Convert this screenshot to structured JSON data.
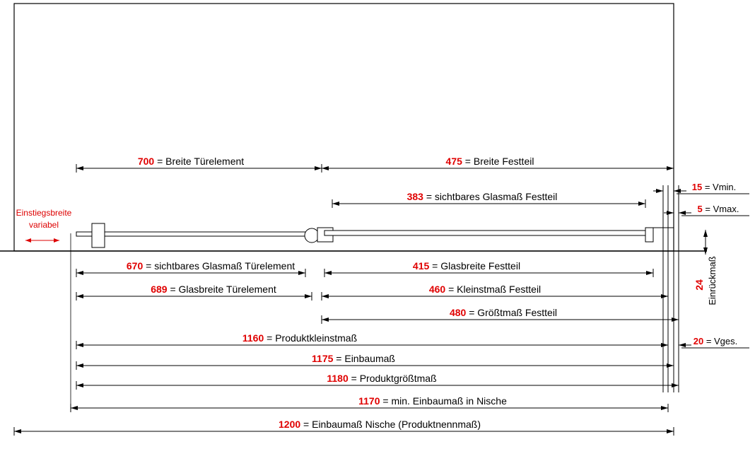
{
  "dimensions": [
    {
      "value": 700,
      "label": "= Breite Türelement"
    },
    {
      "value": 475,
      "label": "= Breite Festteil"
    },
    {
      "value": 383,
      "label": "= sichtbares Glasmaß Festteil"
    },
    {
      "value": 670,
      "label": "= sichtbares Glasmaß Türelement"
    },
    {
      "value": 415,
      "label": "= Glasbreite Festteil"
    },
    {
      "value": 689,
      "label": "= Glasbreite Türelement"
    },
    {
      "value": 460,
      "label": "= Kleinstmaß Festteil"
    },
    {
      "value": 480,
      "label": "= Größtmaß Festteil"
    },
    {
      "value": 1160,
      "label": "= Produktkleinstmaß"
    },
    {
      "value": 1175,
      "label": "= Einbaumaß"
    },
    {
      "value": 1180,
      "label": "= Produktgrößtmaß"
    },
    {
      "value": 1170,
      "label": "= min. Einbaumaß in Nische"
    },
    {
      "value": 1200,
      "label": "= Einbaumaß Nische (Produktnennmaß)"
    }
  ],
  "side_dimensions": [
    {
      "value": 15,
      "label": "= Vmin."
    },
    {
      "value": 5,
      "label": "= Vmax."
    },
    {
      "value": 20,
      "label": "= Vges."
    }
  ],
  "inset": {
    "value": 24,
    "label": "Einrückmaß"
  },
  "entry": {
    "line1": "Einstiegsbreite",
    "line2": "variabel"
  }
}
